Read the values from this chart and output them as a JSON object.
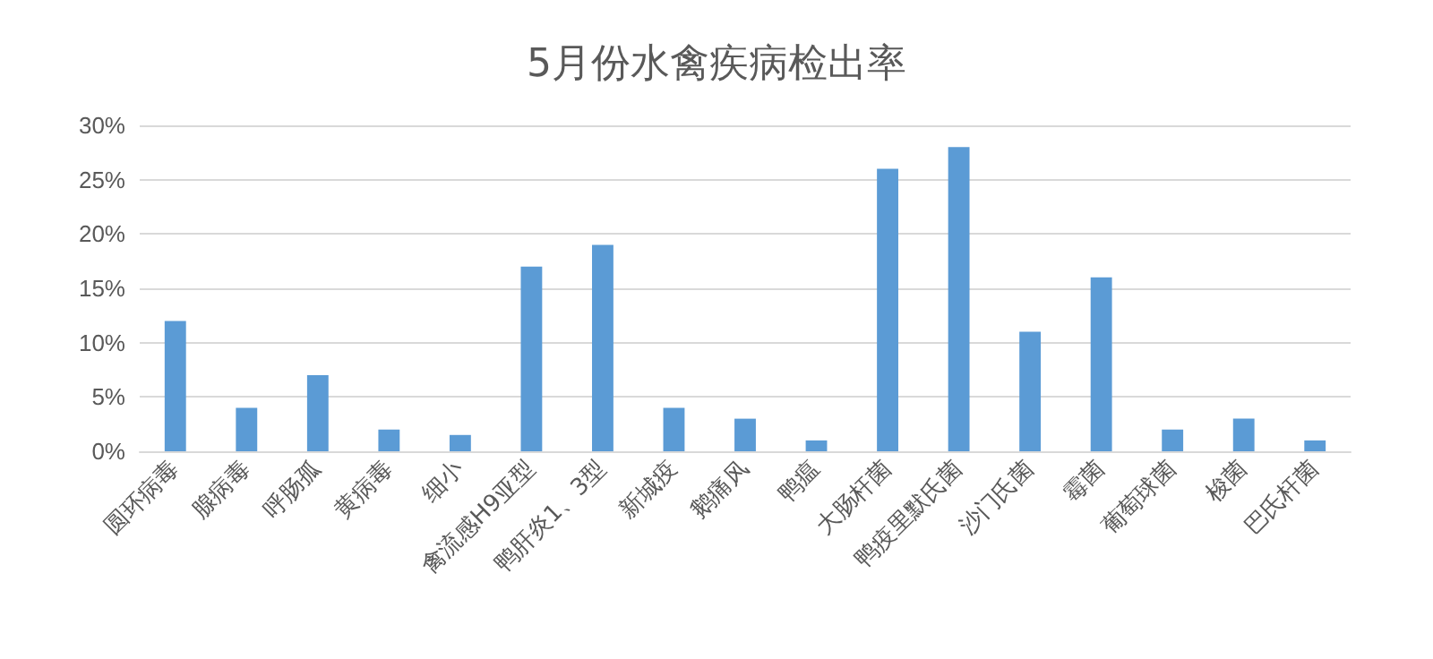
{
  "chart_data": {
    "type": "bar",
    "title": "5月份水禽疾病检出率",
    "categories": [
      "圆环病毒",
      "腺病毒",
      "呼肠孤",
      "黄病毒",
      "细小",
      "禽流感H9亚型",
      "鸭肝炎1、3型",
      "新城疫",
      "鹅痛风",
      "鸭瘟",
      "大肠杆菌",
      "鸭疫里默氏菌",
      "沙门氏菌",
      "霉菌",
      "葡萄球菌",
      "梭菌",
      "巴氏杆菌"
    ],
    "values": [
      12,
      4,
      7,
      2,
      1.5,
      17,
      19,
      4,
      3,
      1,
      26,
      28,
      11,
      16,
      2,
      3,
      1
    ],
    "color": "#5b9bd5",
    "ylim": [
      0,
      30
    ],
    "yticks": [
      {
        "value": 0,
        "label": "0%"
      },
      {
        "value": 5,
        "label": "5%"
      },
      {
        "value": 10,
        "label": "10%"
      },
      {
        "value": 15,
        "label": "15%"
      },
      {
        "value": 20,
        "label": "20%"
      },
      {
        "value": 25,
        "label": "25%"
      },
      {
        "value": 30,
        "label": "30%"
      }
    ],
    "grid": "y"
  }
}
